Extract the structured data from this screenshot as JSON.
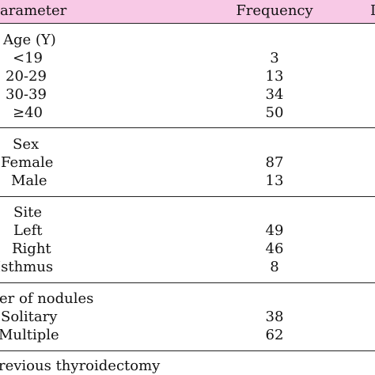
{
  "header": {
    "parameter": "arameter",
    "frequency": "Frequency",
    "third_col_fragment": "I"
  },
  "groups": [
    {
      "title": "Age (Y)",
      "rows": [
        {
          "label": "<19",
          "value": "3"
        },
        {
          "label": "20-29",
          "value": "13"
        },
        {
          "label": "30-39",
          "value": "34"
        },
        {
          "label": "≥40",
          "value": "50"
        }
      ]
    },
    {
      "title": "Sex",
      "rows": [
        {
          "label": "Female",
          "value": "87"
        },
        {
          "label": "Male",
          "value": "13"
        }
      ]
    },
    {
      "title": "Site",
      "rows": [
        {
          "label": "Left",
          "value": "49"
        },
        {
          "label": "Right",
          "value": "46"
        },
        {
          "label": "Isthmus",
          "value": "8"
        }
      ]
    },
    {
      "title": "er of nodules",
      "rows": [
        {
          "label": "Solitary",
          "value": "38"
        },
        {
          "label": "Multiple",
          "value": "62"
        }
      ]
    },
    {
      "title": "revious thyroidectomy",
      "rows": []
    }
  ],
  "colors": {
    "header_background": "#f8c9e6",
    "rule": "#222222",
    "text": "#111111"
  }
}
